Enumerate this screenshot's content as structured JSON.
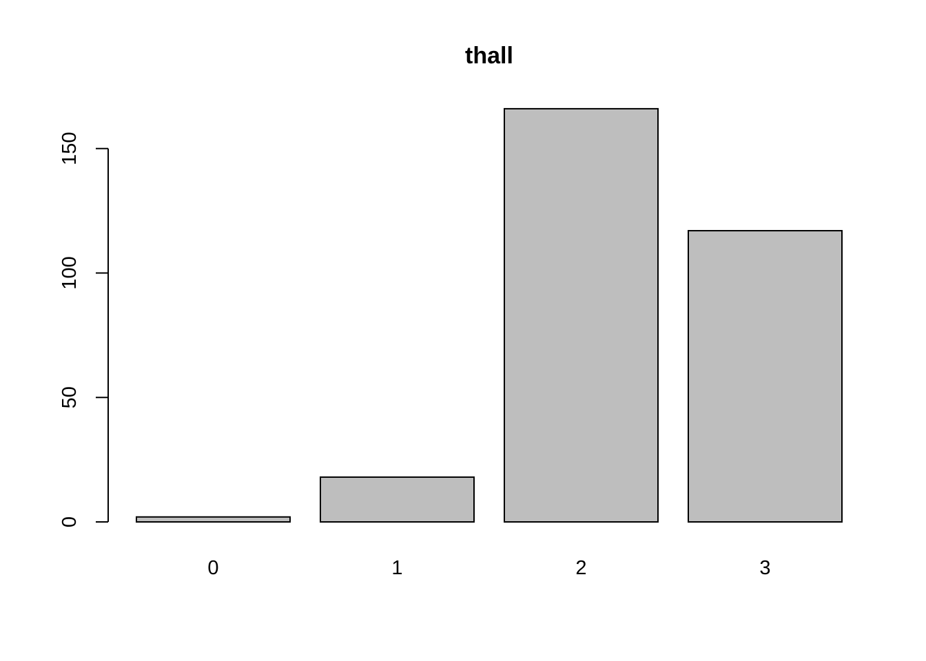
{
  "chart_data": {
    "type": "bar",
    "title": "thall",
    "xlabel": "",
    "ylabel": "",
    "categories": [
      "0",
      "1",
      "2",
      "3"
    ],
    "values": [
      2,
      18,
      166,
      117
    ],
    "ylim": [
      0,
      166
    ],
    "yticks": [
      0,
      50,
      100,
      150
    ],
    "grid": false,
    "legend": "none",
    "colors": {
      "bar_fill": "#bebebe",
      "bar_stroke": "#000000"
    }
  }
}
